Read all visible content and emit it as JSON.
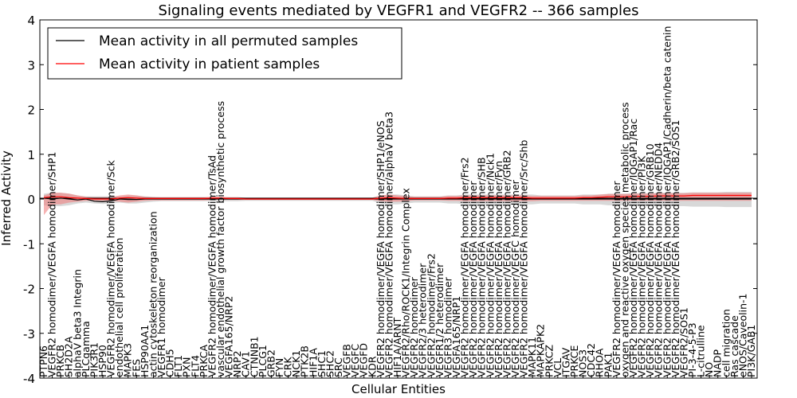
{
  "chart_data": {
    "type": "line",
    "title": "Signaling events mediated by VEGFR1 and VEGFR2 -- 366 samples",
    "xlabel": "Cellular Entities",
    "ylabel": "Inferred Activity",
    "ylim": [
      -4,
      4
    ],
    "yticks": [
      -4,
      -3,
      -2,
      -1,
      0,
      1,
      2,
      3,
      4
    ],
    "legend_position": "top-left",
    "colors": {
      "permuted_line": "#000000",
      "patient_line": "#ff0000",
      "permuted_band": "#c8c8c8",
      "patient_band": "#f08080"
    },
    "categories": [
      "PTPN6",
      "VEGFR2 homodimer/VEGFA homodimer/SHP1",
      "PRKCB",
      "SH2D2A",
      "alphaV beta3 Integrin",
      "PLCgamma",
      "PIK3R1",
      "HSP90",
      "VEGFR2 homodimer/VEGFA homodimer/Sck",
      "endothelial cell proliferation",
      "MAPK3",
      "FES",
      "HSP90AA1",
      "actin cytoskeleton reorganization",
      "VEGFR1 homodimer",
      "CDH5",
      "FLT1",
      "PXN",
      "FLT4",
      "PRKCA",
      "VEGFR2 homodimer/VEGFA homodimer/TsAd",
      "vascular endothelial growth factor biosynthetic process",
      "VEGFA165/NRP2",
      "NRP2",
      "CAV1",
      "CTNNB1",
      "PLCG1",
      "GRB2",
      "FYN",
      "CRK",
      "NCK1",
      "PTK2B",
      "HIF1A",
      "SHC1",
      "SHC2",
      "SRC",
      "VEGFB",
      "VEGFC",
      "VEGFD",
      "KDR",
      "VEGFR2 homodimer/VEGFA homodimer/SHP1/eNOS",
      "VEGFR2 homodimer/VEGFA homodimer/alphaV beta3",
      "HIF1A/ARNT",
      "VEGFR2/Rho/ROCK1/Integrin Complex",
      "VEGFR2 homodimer",
      "VEGFR2/3 heterodimer",
      "VEGFR2 homodimer/Frs2",
      "VEGFR1/2 heterodimer",
      "VEGFR3 homodimer",
      "VEGFA165/NRP1",
      "VEGFR2 homodimer/VEGFA homodimer/Frs2",
      "VEGFR2 homodimer/VEGFA homodimer",
      "VEGFR2 homodimer/VEGFA homodimer/SHB",
      "VEGFR2 homodimer/VEGFA homodimer/Nck1",
      "VEGFR2 homodimer/VEGFA homodimer/Fyn",
      "VEGFR2 homodimer/VEGFA homodimer/GRB2",
      "VEGFR2 homodimer/VEGFC homodimer",
      "VEGFR2 homodimer/VEGFA homodimer/Src/Shb",
      "MAPK11",
      "MAPKAPK2",
      "PRKCZ",
      "VCL",
      "ITGAV",
      "PRKCE",
      "NOS3",
      "CDC42",
      "RHOA",
      "PAK1",
      "VEGFR2 homodimer/VEGFA homodimer",
      "oxygen and reactive oxygen species metabolic process",
      "VEGFR2 homodimer/VEGFA homodimer/IQGAP1/Rac",
      "VEGFR2 homodimer/VEGFA homodimer/PI3K",
      "VEGFR2 homodimer/VEGFA homodimer/GRB10",
      "VEGFR2 homodimer/VEGFA homodimer/NEDD4",
      "VEGFR2 homodimer/VEGFA homodimer/IQGAP1/Cadherin/beta catenin",
      "VEGFR2 homodimer/VEGFA homodimer/GRB2/SOS1",
      "VEGFR2/SOS1",
      "PI-3-4-5-P3",
      "L-citrulline",
      "NO",
      "NADP",
      "cell migration",
      "Ras cascade",
      "eNOS/Caveolin-1",
      "PI3K/GAB1"
    ],
    "series": [
      {
        "name": "Mean activity in all permuted samples",
        "values": [
          0.02,
          0.0,
          0.02,
          0.0,
          -0.02,
          0.0,
          -0.05,
          -0.06,
          -0.04,
          0.0,
          -0.01,
          -0.01,
          0.0,
          0.0,
          0.0,
          0.0,
          0.0,
          0.0,
          0.0,
          0.0,
          0.0,
          0.0,
          0.0,
          0.0,
          0.0,
          0.0,
          0.0,
          0.0,
          0.0,
          0.0,
          0.0,
          0.0,
          0.0,
          0.0,
          0.0,
          0.0,
          0.0,
          0.0,
          0.0,
          0.0,
          0.0,
          0.0,
          0.0,
          0.0,
          0.0,
          0.0,
          0.0,
          0.0,
          0.0,
          0.0,
          0.0,
          0.0,
          0.0,
          0.0,
          0.0,
          0.0,
          0.0,
          0.0,
          0.0,
          0.0,
          0.0,
          0.0,
          0.0,
          0.0,
          0.0,
          0.0,
          0.0,
          0.0,
          0.0,
          0.0,
          0.0,
          0.0,
          0.0,
          0.0,
          0.0,
          0.0,
          0.0,
          0.0,
          0.0,
          0.0,
          0.0,
          0.0,
          0.0,
          0.0,
          0.0
        ]
      },
      {
        "name": "Mean activity in patient samples",
        "values": [
          0.03,
          0.05,
          0.05,
          0.03,
          0.02,
          0.01,
          0.0,
          0.0,
          0.0,
          0.02,
          0.03,
          0.02,
          0.01,
          0.01,
          0.01,
          0.01,
          0.01,
          0.01,
          0.01,
          0.01,
          0.02,
          0.02,
          0.01,
          0.01,
          0.0,
          0.0,
          0.0,
          0.0,
          0.0,
          0.0,
          0.0,
          0.0,
          0.0,
          0.0,
          0.0,
          0.0,
          0.0,
          0.0,
          0.0,
          0.0,
          0.02,
          0.03,
          0.02,
          0.01,
          0.01,
          0.01,
          0.01,
          0.01,
          0.02,
          0.02,
          0.03,
          0.03,
          0.03,
          0.03,
          0.03,
          0.03,
          0.03,
          0.03,
          0.02,
          0.02,
          0.02,
          0.02,
          0.02,
          0.02,
          0.03,
          0.03,
          0.04,
          0.05,
          0.05,
          0.05,
          0.06,
          0.06,
          0.06,
          0.07,
          0.07,
          0.07,
          0.07,
          0.08,
          0.08,
          0.08,
          0.08,
          0.08,
          0.08,
          0.08,
          0.08
        ]
      }
    ],
    "bands": [
      {
        "name": "Mean activity in all permuted samples spread",
        "lower": [
          -0.14,
          -0.16,
          -0.16,
          -0.14,
          -0.1,
          -0.08,
          -0.1,
          -0.11,
          -0.1,
          -0.08,
          -0.1,
          -0.1,
          -0.08,
          -0.06,
          -0.05,
          -0.05,
          -0.05,
          -0.05,
          -0.05,
          -0.05,
          -0.05,
          -0.05,
          -0.05,
          -0.05,
          -0.04,
          -0.04,
          -0.04,
          -0.04,
          -0.04,
          -0.04,
          -0.04,
          -0.04,
          -0.04,
          -0.04,
          -0.04,
          -0.04,
          -0.04,
          -0.04,
          -0.04,
          -0.04,
          -0.1,
          -0.12,
          -0.12,
          -0.1,
          -0.08,
          -0.08,
          -0.08,
          -0.08,
          -0.1,
          -0.1,
          -0.12,
          -0.12,
          -0.12,
          -0.12,
          -0.12,
          -0.12,
          -0.12,
          -0.12,
          -0.12,
          -0.1,
          -0.1,
          -0.1,
          -0.1,
          -0.1,
          -0.12,
          -0.12,
          -0.12,
          -0.14,
          -0.14,
          -0.14,
          -0.15,
          -0.15,
          -0.15,
          -0.16,
          -0.16,
          -0.16,
          -0.16,
          -0.17,
          -0.17,
          -0.17,
          -0.17,
          -0.18,
          -0.18,
          -0.18,
          -0.18
        ],
        "upper": [
          0.12,
          0.14,
          0.14,
          0.12,
          0.08,
          0.06,
          0.06,
          0.06,
          0.06,
          0.06,
          0.08,
          0.08,
          0.06,
          0.05,
          0.04,
          0.04,
          0.04,
          0.04,
          0.04,
          0.04,
          0.04,
          0.04,
          0.04,
          0.04,
          0.03,
          0.03,
          0.03,
          0.03,
          0.03,
          0.03,
          0.03,
          0.03,
          0.03,
          0.03,
          0.03,
          0.03,
          0.03,
          0.03,
          0.03,
          0.03,
          0.08,
          0.1,
          0.1,
          0.08,
          0.06,
          0.06,
          0.06,
          0.06,
          0.08,
          0.08,
          0.1,
          0.1,
          0.1,
          0.1,
          0.1,
          0.1,
          0.1,
          0.1,
          0.1,
          0.08,
          0.08,
          0.08,
          0.08,
          0.08,
          0.1,
          0.1,
          0.1,
          0.12,
          0.12,
          0.12,
          0.13,
          0.13,
          0.13,
          0.14,
          0.14,
          0.14,
          0.14,
          0.15,
          0.15,
          0.15,
          0.15,
          0.16,
          0.16,
          0.16,
          0.16
        ]
      },
      {
        "name": "Mean activity in patient samples spread",
        "lower": [
          -0.36,
          -0.12,
          -0.12,
          -0.08,
          -0.06,
          -0.04,
          -0.04,
          -0.04,
          -0.04,
          -0.06,
          -0.08,
          -0.06,
          -0.04,
          -0.03,
          -0.03,
          -0.03,
          -0.03,
          -0.03,
          -0.03,
          -0.03,
          -0.02,
          -0.02,
          -0.02,
          -0.02,
          -0.02,
          -0.02,
          -0.02,
          -0.02,
          -0.02,
          -0.02,
          -0.02,
          -0.02,
          -0.02,
          -0.02,
          -0.02,
          -0.02,
          -0.02,
          -0.02,
          -0.02,
          -0.02,
          -0.05,
          -0.06,
          -0.06,
          -0.05,
          -0.03,
          -0.03,
          -0.03,
          -0.03,
          -0.04,
          -0.04,
          -0.05,
          -0.05,
          -0.05,
          -0.05,
          -0.05,
          -0.05,
          -0.05,
          -0.05,
          -0.05,
          -0.04,
          -0.04,
          -0.04,
          -0.04,
          -0.04,
          -0.04,
          -0.04,
          -0.04,
          -0.04,
          -0.04,
          -0.04,
          -0.04,
          -0.04,
          -0.04,
          -0.04,
          -0.04,
          -0.04,
          -0.04,
          -0.04,
          -0.04,
          -0.04,
          -0.04,
          -0.04,
          -0.04,
          -0.04,
          -0.04
        ],
        "upper": [
          0.08,
          0.14,
          0.14,
          0.12,
          0.08,
          0.05,
          0.04,
          0.04,
          0.04,
          0.08,
          0.1,
          0.08,
          0.05,
          0.04,
          0.04,
          0.04,
          0.04,
          0.04,
          0.04,
          0.04,
          0.05,
          0.05,
          0.04,
          0.04,
          0.03,
          0.03,
          0.03,
          0.03,
          0.03,
          0.03,
          0.03,
          0.03,
          0.03,
          0.03,
          0.03,
          0.03,
          0.03,
          0.03,
          0.03,
          0.03,
          0.08,
          0.1,
          0.08,
          0.06,
          0.05,
          0.05,
          0.05,
          0.05,
          0.07,
          0.07,
          0.08,
          0.08,
          0.08,
          0.08,
          0.08,
          0.08,
          0.08,
          0.08,
          0.07,
          0.07,
          0.07,
          0.07,
          0.07,
          0.07,
          0.08,
          0.08,
          0.1,
          0.11,
          0.11,
          0.11,
          0.12,
          0.12,
          0.12,
          0.13,
          0.13,
          0.13,
          0.13,
          0.14,
          0.14,
          0.14,
          0.14,
          0.14,
          0.14,
          0.14,
          0.14
        ]
      }
    ]
  }
}
